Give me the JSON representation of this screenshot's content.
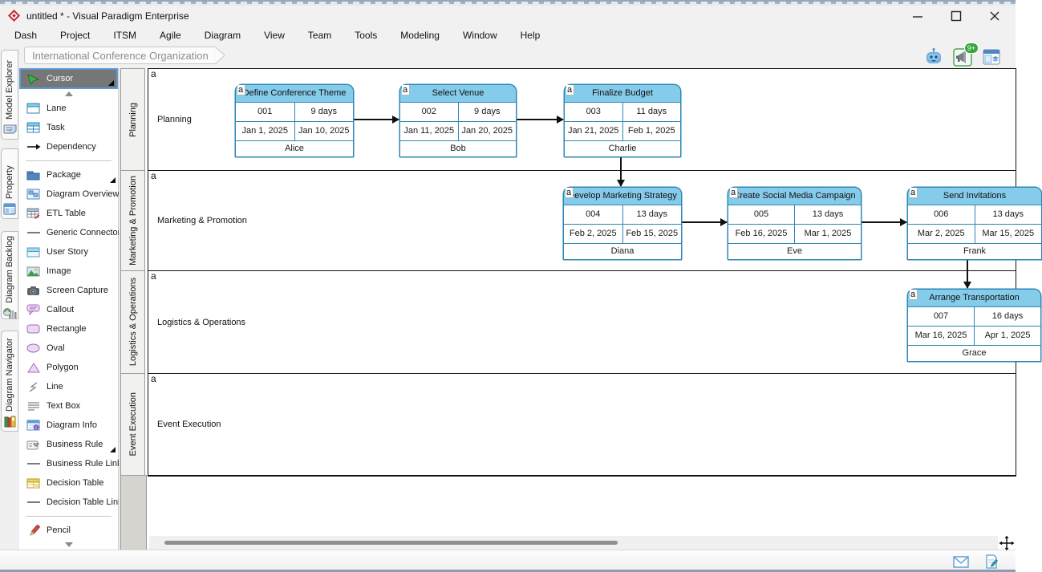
{
  "window": {
    "title": "untitled * - Visual Paradigm Enterprise",
    "controls": [
      {
        "name": "minimize-icon"
      },
      {
        "name": "maximize-icon"
      },
      {
        "name": "close-icon"
      }
    ]
  },
  "menu": {
    "items": [
      "Dash",
      "Project",
      "ITSM",
      "Agile",
      "Diagram",
      "View",
      "Team",
      "Tools",
      "Modeling",
      "Window",
      "Help"
    ]
  },
  "toolbar": {
    "breadcrumb": "International Conference Organization",
    "right_icons": [
      {
        "name": "ai-assistant-robot-icon"
      },
      {
        "name": "announcement-megaphone-icon",
        "badge": "9+"
      },
      {
        "name": "panel-layout-icon"
      }
    ]
  },
  "left_tabs": {
    "items": [
      {
        "label": "Model Explorer",
        "icon": "model-explorer-tab-icon"
      },
      {
        "label": "Property",
        "icon": "property-tab-icon"
      },
      {
        "label": "Diagram Backlog",
        "icon": "diagram-backlog-tab-icon"
      },
      {
        "label": "Diagram Navigator",
        "icon": "diagram-navigator-tab-icon"
      }
    ]
  },
  "palette": {
    "items": [
      {
        "label": "Cursor",
        "icon": "cursor-icon",
        "selected": true,
        "submenu": true
      },
      {
        "type": "scroll-up"
      },
      {
        "label": "Lane",
        "icon": "lane-icon"
      },
      {
        "label": "Task",
        "icon": "task-icon"
      },
      {
        "label": "Dependency",
        "icon": "dependency-icon"
      },
      {
        "type": "divider"
      },
      {
        "label": "Package",
        "icon": "package-icon",
        "submenu": true
      },
      {
        "label": "Diagram Overview",
        "icon": "diagram-overview-icon"
      },
      {
        "label": "ETL Table",
        "icon": "etl-table-icon"
      },
      {
        "label": "Generic Connector",
        "icon": "generic-connector-icon"
      },
      {
        "label": "User Story",
        "icon": "user-story-icon"
      },
      {
        "label": "Image",
        "icon": "image-icon"
      },
      {
        "label": "Screen Capture",
        "icon": "screen-capture-icon"
      },
      {
        "label": "Callout",
        "icon": "callout-icon"
      },
      {
        "label": "Rectangle",
        "icon": "rectangle-icon"
      },
      {
        "label": "Oval",
        "icon": "oval-icon"
      },
      {
        "label": "Polygon",
        "icon": "polygon-icon"
      },
      {
        "label": "Line",
        "icon": "line-icon"
      },
      {
        "label": "Text Box",
        "icon": "text-box-icon"
      },
      {
        "label": "Diagram Info",
        "icon": "diagram-info-icon"
      },
      {
        "label": "Business Rule",
        "icon": "business-rule-icon",
        "submenu": true
      },
      {
        "label": "Business Rule Link",
        "icon": "business-rule-link-icon"
      },
      {
        "label": "Decision Table",
        "icon": "decision-table-icon"
      },
      {
        "label": "Decision Table Link",
        "icon": "decision-table-link-icon"
      },
      {
        "type": "divider"
      },
      {
        "label": "Pencil",
        "icon": "pencil-icon"
      },
      {
        "type": "scroll-down"
      }
    ]
  },
  "diagram": {
    "instance_marker": "a",
    "lanes": [
      {
        "name": "Planning"
      },
      {
        "name": "Marketing & Promotion"
      },
      {
        "name": "Logistics & Operations"
      },
      {
        "name": "Event Execution"
      }
    ],
    "tasks": [
      {
        "id": "001",
        "lane": "Planning",
        "title": "Define Conference Theme",
        "duration": "9 days",
        "start": "Jan 1, 2025",
        "end": "Jan 10, 2025",
        "owner": "Alice"
      },
      {
        "id": "002",
        "lane": "Planning",
        "title": "Select Venue",
        "duration": "9 days",
        "start": "Jan 11, 2025",
        "end": "Jan 20, 2025",
        "owner": "Bob"
      },
      {
        "id": "003",
        "lane": "Planning",
        "title": "Finalize Budget",
        "duration": "11 days",
        "start": "Jan 21, 2025",
        "end": "Feb 1, 2025",
        "owner": "Charlie"
      },
      {
        "id": "004",
        "lane": "Marketing & Promotion",
        "title": "Develop Marketing Strategy",
        "duration": "13 days",
        "start": "Feb 2, 2025",
        "end": "Feb 15, 2025",
        "owner": "Diana"
      },
      {
        "id": "005",
        "lane": "Marketing & Promotion",
        "title": "Create Social Media Campaign",
        "duration": "13 days",
        "start": "Feb 16, 2025",
        "end": "Mar 1, 2025",
        "owner": "Eve"
      },
      {
        "id": "006",
        "lane": "Marketing & Promotion",
        "title": "Send Invitations",
        "duration": "13 days",
        "start": "Mar 2, 2025",
        "end": "Mar 15, 2025",
        "owner": "Frank"
      },
      {
        "id": "007",
        "lane": "Logistics & Operations",
        "title": "Arrange Transportation",
        "duration": "16 days",
        "start": "Mar 16, 2025",
        "end": "Apr 1, 2025",
        "owner": "Grace"
      }
    ],
    "dependencies": [
      {
        "from": "001",
        "to": "002"
      },
      {
        "from": "002",
        "to": "003"
      },
      {
        "from": "003",
        "to": "004"
      },
      {
        "from": "004",
        "to": "005"
      },
      {
        "from": "005",
        "to": "006"
      },
      {
        "from": "006",
        "to": "007"
      }
    ]
  },
  "status_bar": {
    "icons": [
      {
        "name": "message-envelope-icon"
      },
      {
        "name": "edit-document-icon"
      }
    ]
  },
  "colors": {
    "task_header": "#85cbea",
    "task_border": "#2e86b5",
    "selection_blue": "#5b9bd5",
    "badge_green": "#35a53a",
    "lane_header_fill": "#f1f1ef"
  }
}
